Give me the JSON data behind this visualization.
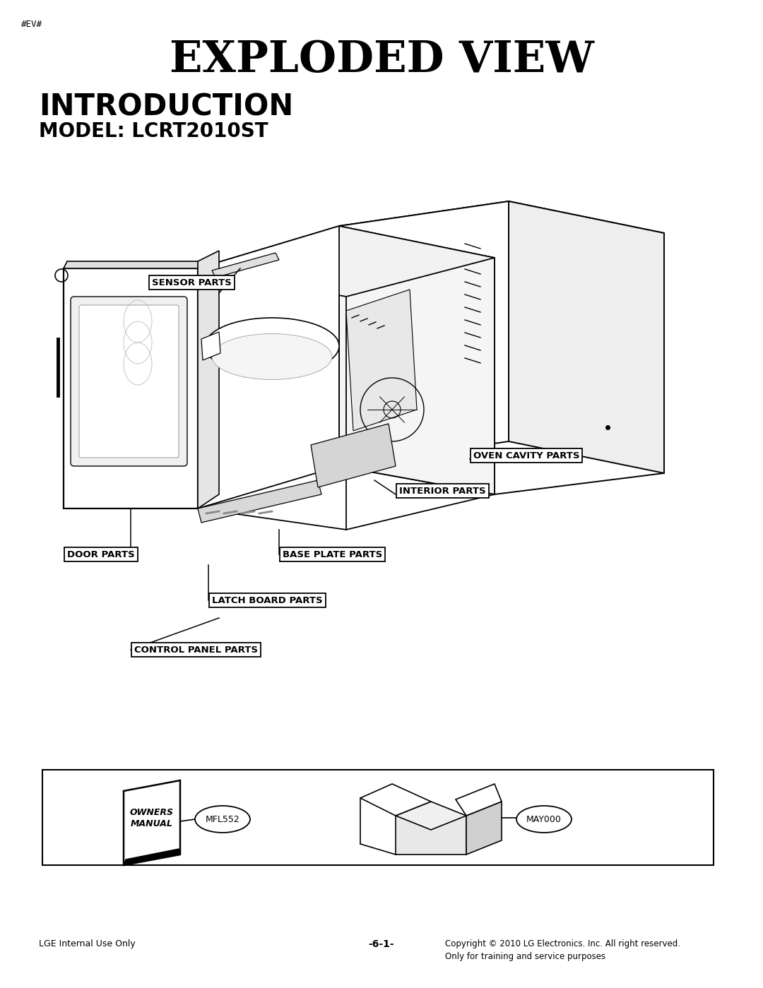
{
  "bg_color": "#ffffff",
  "page_tag": "#EV#",
  "main_title": "EXPLODED VIEW",
  "section_title": "INTRODUCTION",
  "model_label": "MODEL: LCRT2010ST",
  "footer_left": "LGE Internal Use Only",
  "footer_center": "-6-1-",
  "footer_right": "Copyright © 2010 LG Electronics. Inc. All right reserved.\nOnly for training and service purposes",
  "owners_manual_text": "OWNERS\nMANUAL",
  "mfl_code": "MFL552",
  "may_code": "MAY000"
}
